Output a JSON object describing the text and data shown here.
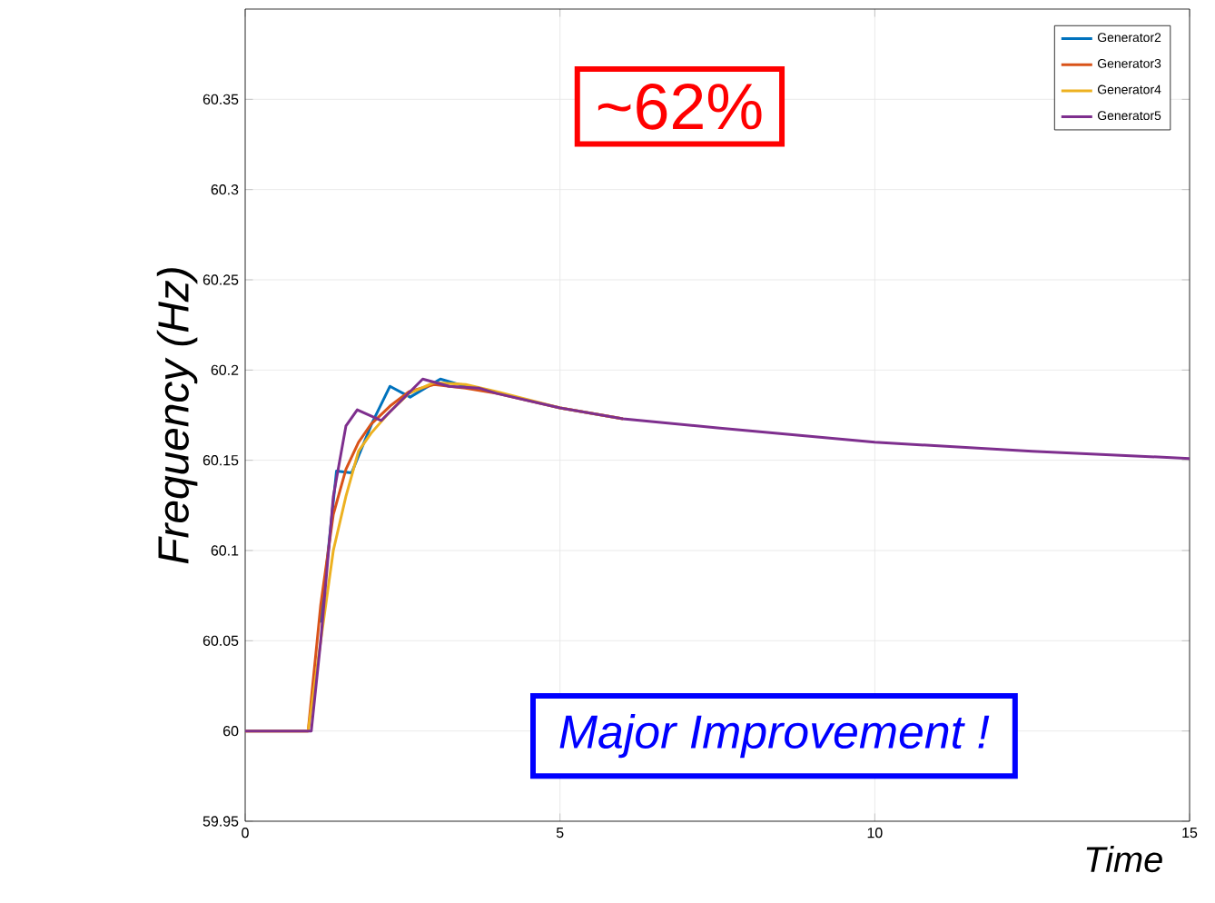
{
  "chart_data": {
    "type": "line",
    "xlabel": "Time",
    "ylabel": "Frequency (Hz)",
    "xlim": [
      0,
      15
    ],
    "ylim": [
      59.95,
      60.4
    ],
    "xticks": [
      0,
      5,
      10,
      15
    ],
    "yticks": [
      59.95,
      60,
      60.05,
      60.1,
      60.15,
      60.2,
      60.25,
      60.3,
      60.35
    ],
    "grid": true,
    "legend": "top right",
    "marker": "none",
    "line_style": "solid",
    "annotations": [
      "~62%",
      "Major Improvement !"
    ],
    "series": [
      {
        "name": "Generator2",
        "color": "#0072bd",
        "x": [
          1.2,
          1.45,
          1.69,
          2.02,
          2.3,
          2.62,
          3.1,
          3.5
        ],
        "values": [
          60.06,
          60.144,
          60.143,
          60.171,
          60.191,
          60.185,
          60.195,
          60.191
        ]
      },
      {
        "name": "Generator3",
        "color": "#d95319",
        "x": [
          0,
          1.0,
          1.2,
          1.4,
          1.6,
          1.8,
          2.0,
          2.3,
          2.6,
          3.0,
          3.5,
          4.0,
          5,
          6
        ],
        "values": [
          60,
          60,
          60.07,
          60.12,
          60.145,
          60.16,
          60.17,
          60.18,
          60.188,
          60.192,
          60.19,
          60.187,
          60.179,
          60.173
        ]
      },
      {
        "name": "Generator4",
        "color": "#edb120",
        "x": [
          0,
          1.0,
          1.2,
          1.4,
          1.6,
          1.8,
          2.0,
          2.3,
          2.6,
          3.0,
          3.5,
          4.0,
          5,
          6
        ],
        "values": [
          60,
          60,
          60.05,
          60.1,
          60.13,
          60.155,
          60.165,
          60.177,
          60.187,
          60.193,
          60.192,
          60.188,
          60.179,
          60.173
        ]
      },
      {
        "name": "Generator5",
        "color": "#7e2f8e",
        "x": [
          0,
          1.05,
          1.2,
          1.4,
          1.6,
          1.78,
          2.16,
          2.82,
          3.24,
          3.71,
          4.0,
          5,
          6,
          7.5,
          10,
          12.5,
          15
        ],
        "values": [
          60,
          60,
          60.05,
          60.13,
          60.169,
          60.178,
          60.172,
          60.195,
          60.191,
          60.19,
          60.187,
          60.179,
          60.173,
          60.168,
          60.16,
          60.155,
          60.151
        ]
      }
    ]
  }
}
